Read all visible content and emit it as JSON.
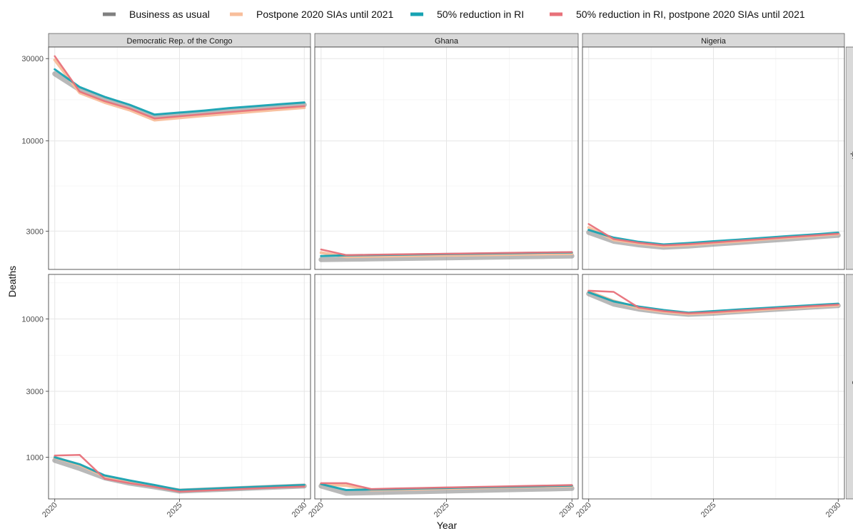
{
  "chart_data": {
    "type": "line",
    "xlabel": "Year",
    "ylabel": "Deaths",
    "y_scale": "log",
    "x_ticks": [
      2020,
      2025,
      2030
    ],
    "x_range": [
      2019.75,
      2030.25
    ],
    "columns": [
      "Democratic Rep. of the Congo",
      "Ghana",
      "Nigeria"
    ],
    "rows": [
      {
        "label": "Imperial",
        "y_range": [
          1800,
          35000
        ],
        "y_ticks": [
          3000,
          10000,
          30000
        ]
      },
      {
        "label": "Notre Dame",
        "y_range": [
          500,
          21000
        ],
        "y_ticks": [
          1000,
          3000,
          10000
        ]
      }
    ],
    "legend_position": "top",
    "legend": [
      {
        "key": "bau",
        "label": "Business as usual",
        "color": "#808080"
      },
      {
        "key": "postpone",
        "label": "Postpone 2020 SIAs until 2021",
        "color": "#F8BE9B"
      },
      {
        "key": "ri50",
        "label": "50% reduction in RI",
        "color": "#17A3B3"
      },
      {
        "key": "ri50_postpone",
        "label": "50% reduction in RI, postpone 2020 SIAs until 2021",
        "color": "#E8717A"
      }
    ],
    "years": [
      2020,
      2021,
      2022,
      2023,
      2024,
      2025,
      2026,
      2027,
      2028,
      2029,
      2030
    ],
    "panels": [
      {
        "column": "Democratic Rep. of the Congo",
        "row": "Imperial",
        "series": {
          "bau": [
            24500,
            19800,
            17500,
            15800,
            13800,
            14200,
            14600,
            15000,
            15400,
            15800,
            16200
          ],
          "postpone": [
            29500,
            19000,
            16700,
            15100,
            13200,
            13600,
            14000,
            14400,
            14800,
            15200,
            15600
          ],
          "ri50": [
            26000,
            20500,
            18000,
            16200,
            14200,
            14600,
            15000,
            15500,
            15900,
            16300,
            16700
          ],
          "ri50_postpone": [
            31000,
            19300,
            17000,
            15400,
            13500,
            13900,
            14300,
            14700,
            15100,
            15500,
            15900
          ]
        }
      },
      {
        "column": "Ghana",
        "row": "Imperial",
        "series": {
          "bau": [
            2050,
            2060,
            2070,
            2080,
            2090,
            2100,
            2110,
            2120,
            2130,
            2140,
            2150
          ],
          "postpone": [
            2250,
            2130,
            2140,
            2150,
            2160,
            2170,
            2180,
            2190,
            2200,
            2210,
            2220
          ],
          "ri50": [
            2150,
            2170,
            2180,
            2190,
            2200,
            2210,
            2220,
            2230,
            2240,
            2250,
            2260
          ],
          "ri50_postpone": [
            2350,
            2180,
            2190,
            2200,
            2210,
            2220,
            2230,
            2240,
            2250,
            2260,
            2270
          ]
        }
      },
      {
        "column": "Nigeria",
        "row": "Imperial",
        "series": {
          "bau": [
            2950,
            2620,
            2500,
            2420,
            2460,
            2520,
            2580,
            2640,
            2700,
            2770,
            2840
          ],
          "postpone": [
            3150,
            2670,
            2550,
            2460,
            2500,
            2560,
            2620,
            2690,
            2750,
            2820,
            2890
          ],
          "ri50": [
            3050,
            2750,
            2600,
            2510,
            2560,
            2620,
            2680,
            2740,
            2810,
            2870,
            2940
          ],
          "ri50_postpone": [
            3300,
            2700,
            2570,
            2480,
            2520,
            2580,
            2640,
            2700,
            2770,
            2830,
            2900
          ]
        }
      },
      {
        "column": "Democratic Rep. of the Congo",
        "row": "Notre Dame",
        "series": {
          "bau": [
            950,
            830,
            710,
            650,
            610,
            570,
            580,
            590,
            600,
            610,
            620
          ],
          "postpone": [
            1000,
            880,
            730,
            670,
            620,
            575,
            585,
            595,
            605,
            615,
            625
          ],
          "ri50": [
            1000,
            890,
            740,
            680,
            630,
            580,
            590,
            600,
            610,
            620,
            630
          ],
          "ri50_postpone": [
            1030,
            1040,
            700,
            650,
            610,
            565,
            575,
            585,
            595,
            605,
            615
          ]
        }
      },
      {
        "column": "Ghana",
        "row": "Notre Dame",
        "series": {
          "bau": [
            620,
            550,
            555,
            560,
            565,
            570,
            575,
            580,
            585,
            590,
            595
          ],
          "postpone": [
            640,
            625,
            580,
            585,
            590,
            595,
            600,
            605,
            610,
            615,
            620
          ],
          "ri50": [
            640,
            580,
            585,
            590,
            595,
            600,
            605,
            610,
            615,
            620,
            625
          ],
          "ri50_postpone": [
            650,
            650,
            590,
            595,
            600,
            605,
            610,
            615,
            620,
            625,
            630
          ]
        }
      },
      {
        "column": "Nigeria",
        "row": "Notre Dame",
        "series": {
          "bau": [
            15200,
            12800,
            11800,
            11200,
            10800,
            11000,
            11300,
            11600,
            11900,
            12200,
            12500
          ],
          "postpone": [
            15800,
            13500,
            12000,
            11300,
            10900,
            11100,
            11400,
            11700,
            12000,
            12300,
            12600
          ],
          "ri50": [
            15600,
            13400,
            12300,
            11600,
            11100,
            11400,
            11700,
            12000,
            12300,
            12600,
            12900
          ],
          "ri50_postpone": [
            16000,
            15700,
            12100,
            11400,
            11000,
            11200,
            11500,
            11800,
            12100,
            12400,
            12700
          ]
        }
      }
    ]
  }
}
